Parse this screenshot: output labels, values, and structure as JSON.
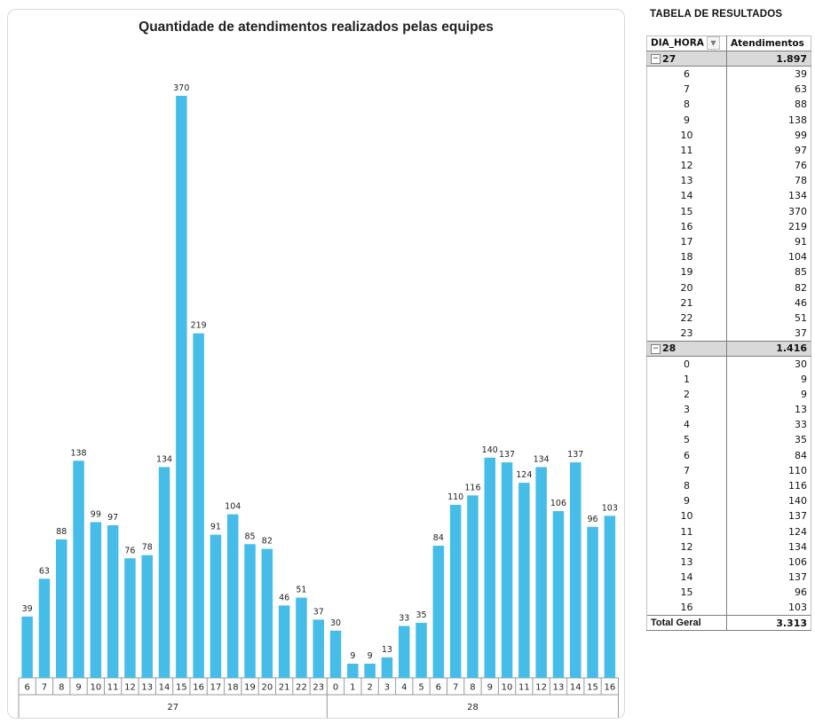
{
  "chart": {
    "title": "Quantidade de atendimentos realizados pelas equipes"
  },
  "chart_data": {
    "type": "bar",
    "title": "Quantidade de atendimentos realizados pelas equipes",
    "xlabel": "",
    "ylabel": "",
    "ylim": [
      0,
      400
    ],
    "grid": false,
    "legend": "none",
    "groups": [
      {
        "name": "27",
        "categories": [
          "6",
          "7",
          "8",
          "9",
          "10",
          "11",
          "12",
          "13",
          "14",
          "15",
          "16",
          "17",
          "18",
          "19",
          "20",
          "21",
          "22",
          "23"
        ],
        "values": [
          39,
          63,
          88,
          138,
          99,
          97,
          76,
          78,
          134,
          370,
          219,
          91,
          104,
          85,
          82,
          46,
          51,
          37
        ]
      },
      {
        "name": "28",
        "categories": [
          "0",
          "1",
          "2",
          "3",
          "4",
          "5",
          "6",
          "7",
          "8",
          "9",
          "10",
          "11",
          "12",
          "13",
          "14",
          "15",
          "16"
        ],
        "values": [
          30,
          9,
          9,
          13,
          33,
          35,
          84,
          110,
          116,
          140,
          137,
          124,
          134,
          106,
          137,
          96,
          103
        ]
      }
    ],
    "bar_color": "#45bde8"
  },
  "table": {
    "title": "TABELA DE RESULTADOS",
    "col1_header": "DIA_HORA",
    "col2_header": "Atendimentos",
    "groups": [
      {
        "label": "27",
        "total": "1.897",
        "rows": [
          [
            "6",
            "39"
          ],
          [
            "7",
            "63"
          ],
          [
            "8",
            "88"
          ],
          [
            "9",
            "138"
          ],
          [
            "10",
            "99"
          ],
          [
            "11",
            "97"
          ],
          [
            "12",
            "76"
          ],
          [
            "13",
            "78"
          ],
          [
            "14",
            "134"
          ],
          [
            "15",
            "370"
          ],
          [
            "16",
            "219"
          ],
          [
            "17",
            "91"
          ],
          [
            "18",
            "104"
          ],
          [
            "19",
            "85"
          ],
          [
            "20",
            "82"
          ],
          [
            "21",
            "46"
          ],
          [
            "22",
            "51"
          ],
          [
            "23",
            "37"
          ]
        ]
      },
      {
        "label": "28",
        "total": "1.416",
        "rows": [
          [
            "0",
            "30"
          ],
          [
            "1",
            "9"
          ],
          [
            "2",
            "9"
          ],
          [
            "3",
            "13"
          ],
          [
            "4",
            "33"
          ],
          [
            "5",
            "35"
          ],
          [
            "6",
            "84"
          ],
          [
            "7",
            "110"
          ],
          [
            "8",
            "116"
          ],
          [
            "9",
            "140"
          ],
          [
            "10",
            "137"
          ],
          [
            "11",
            "124"
          ],
          [
            "12",
            "134"
          ],
          [
            "13",
            "106"
          ],
          [
            "14",
            "137"
          ],
          [
            "15",
            "96"
          ],
          [
            "16",
            "103"
          ]
        ]
      }
    ],
    "total_label": "Total Geral",
    "total_value": "3.313"
  }
}
